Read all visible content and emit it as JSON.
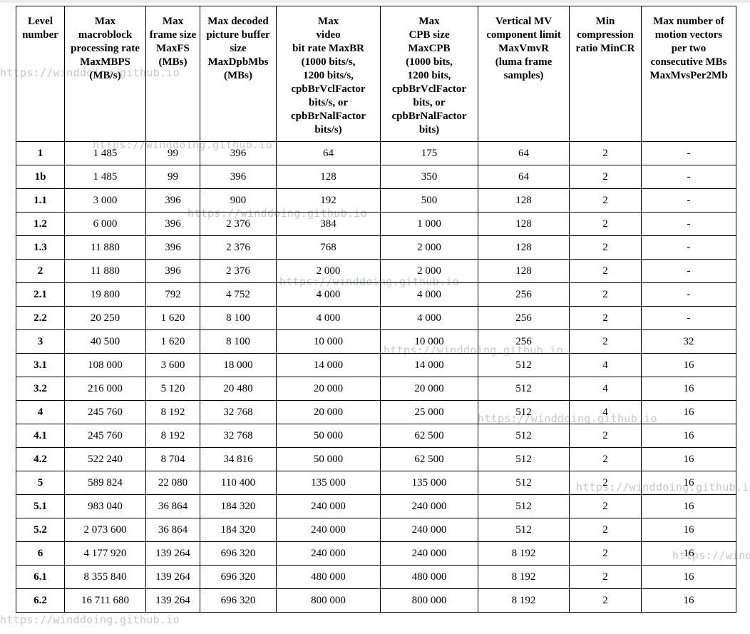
{
  "page": {
    "background": "#ffffff",
    "top_strip_color": "#ececec"
  },
  "watermark": {
    "text": "https://winddoing.github.io",
    "color": "#c3c7ca"
  },
  "table": {
    "border_color": "#000000",
    "text_color": "#000000",
    "columns": [
      "Level\nnumber",
      "Max\nmacroblock\nprocessing rate\nMaxMBPS\n(MB/s)",
      "Max\nframe size\nMaxFS\n(MBs)",
      "Max decoded\npicture buffer\nsize\nMaxDpbMbs\n(MBs)",
      "Max\nvideo\nbit rate MaxBR\n(1000 bits/s,\n1200 bits/s,\ncpbBrVclFactor\nbits/s, or\ncpbBrNalFactor\nbits/s)",
      "Max\nCPB size\nMaxCPB\n(1000 bits,\n1200 bits,\ncpbBrVclFactor\nbits, or\ncpbBrNalFactor\nbits)",
      "Vertical MV\ncomponent limit\nMaxVmvR\n(luma frame\nsamples)",
      "Min\ncompression\nratio MinCR",
      "Max number of\nmotion vectors\nper two\nconsecutive MBs\nMaxMvsPer2Mb"
    ],
    "rows": [
      [
        "1",
        "1 485",
        "99",
        "396",
        "64",
        "175",
        "64",
        "2",
        "-"
      ],
      [
        "1b",
        "1 485",
        "99",
        "396",
        "128",
        "350",
        "64",
        "2",
        "-"
      ],
      [
        "1.1",
        "3 000",
        "396",
        "900",
        "192",
        "500",
        "128",
        "2",
        "-"
      ],
      [
        "1.2",
        "6 000",
        "396",
        "2 376",
        "384",
        "1 000",
        "128",
        "2",
        "-"
      ],
      [
        "1.3",
        "11 880",
        "396",
        "2 376",
        "768",
        "2 000",
        "128",
        "2",
        "-"
      ],
      [
        "2",
        "11 880",
        "396",
        "2 376",
        "2 000",
        "2 000",
        "128",
        "2",
        "-"
      ],
      [
        "2.1",
        "19 800",
        "792",
        "4 752",
        "4 000",
        "4 000",
        "256",
        "2",
        "-"
      ],
      [
        "2.2",
        "20 250",
        "1 620",
        "8 100",
        "4 000",
        "4 000",
        "256",
        "2",
        "-"
      ],
      [
        "3",
        "40 500",
        "1 620",
        "8 100",
        "10 000",
        "10 000",
        "256",
        "2",
        "32"
      ],
      [
        "3.1",
        "108 000",
        "3 600",
        "18 000",
        "14 000",
        "14 000",
        "512",
        "4",
        "16"
      ],
      [
        "3.2",
        "216 000",
        "5 120",
        "20 480",
        "20 000",
        "20 000",
        "512",
        "4",
        "16"
      ],
      [
        "4",
        "245 760",
        "8 192",
        "32 768",
        "20 000",
        "25 000",
        "512",
        "4",
        "16"
      ],
      [
        "4.1",
        "245 760",
        "8 192",
        "32 768",
        "50 000",
        "62 500",
        "512",
        "2",
        "16"
      ],
      [
        "4.2",
        "522 240",
        "8 704",
        "34 816",
        "50 000",
        "62 500",
        "512",
        "2",
        "16"
      ],
      [
        "5",
        "589 824",
        "22 080",
        "110 400",
        "135 000",
        "135 000",
        "512",
        "2",
        "16"
      ],
      [
        "5.1",
        "983 040",
        "36 864",
        "184 320",
        "240 000",
        "240 000",
        "512",
        "2",
        "16"
      ],
      [
        "5.2",
        "2 073 600",
        "36 864",
        "184 320",
        "240 000",
        "240 000",
        "512",
        "2",
        "16"
      ],
      [
        "6",
        "4 177 920",
        "139 264",
        "696 320",
        "240 000",
        "240 000",
        "8 192",
        "2",
        "16"
      ],
      [
        "6.1",
        "8 355 840",
        "139 264",
        "696 320",
        "480 000",
        "480 000",
        "8 192",
        "2",
        "16"
      ],
      [
        "6.2",
        "16 711 680",
        "139 264",
        "696 320",
        "800 000",
        "800 000",
        "8 192",
        "2",
        "16"
      ]
    ]
  }
}
